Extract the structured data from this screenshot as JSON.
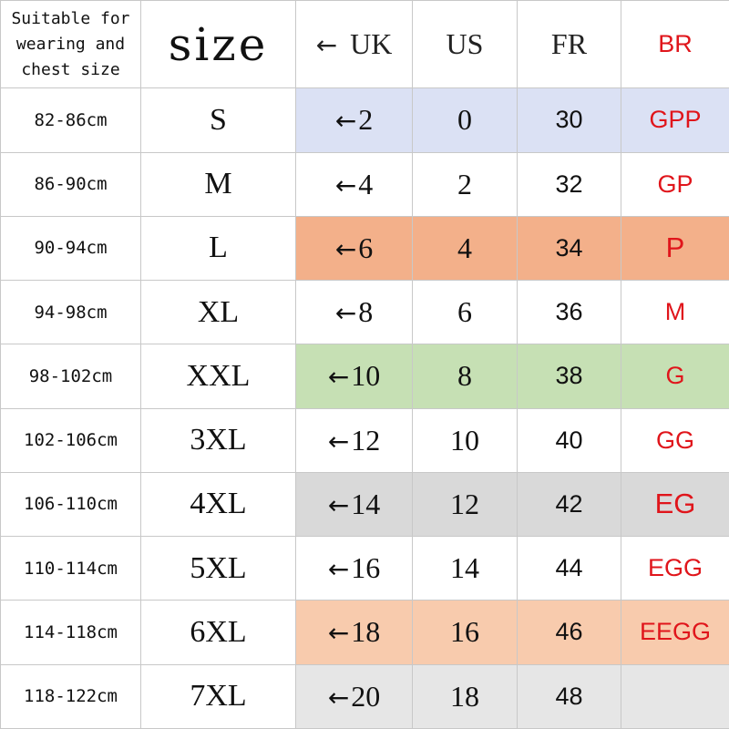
{
  "header": {
    "chest_label": "Suitable for wearing and chest size",
    "size_label": "size",
    "uk_label": "UK",
    "us_label": "US",
    "fr_label": "FR",
    "br_label": "BR",
    "arrow": "←"
  },
  "rows": [
    {
      "chest": "82-86cm",
      "size": "S",
      "uk": "2",
      "us": "0",
      "fr": "30",
      "br": "GPP",
      "highlight": "#dbe1f4"
    },
    {
      "chest": "86-90cm",
      "size": "M",
      "uk": "4",
      "us": "2",
      "fr": "32",
      "br": "GP",
      "highlight": null
    },
    {
      "chest": "90-94cm",
      "size": "L",
      "uk": "6",
      "us": "4",
      "fr": "34",
      "br": "P",
      "highlight": "#f3b08a"
    },
    {
      "chest": "94-98cm",
      "size": "XL",
      "uk": "8",
      "us": "6",
      "fr": "36",
      "br": "M",
      "highlight": null
    },
    {
      "chest": "98-102cm",
      "size": "XXL",
      "uk": "10",
      "us": "8",
      "fr": "38",
      "br": "G",
      "highlight": "#c6e0b4"
    },
    {
      "chest": "102-106cm",
      "size": "3XL",
      "uk": "12",
      "us": "10",
      "fr": "40",
      "br": "GG",
      "highlight": null
    },
    {
      "chest": "106-110cm",
      "size": "4XL",
      "uk": "14",
      "us": "12",
      "fr": "42",
      "br": "EG",
      "highlight": "#d9d9d9"
    },
    {
      "chest": "110-114cm",
      "size": "5XL",
      "uk": "16",
      "us": "14",
      "fr": "44",
      "br": "EGG",
      "highlight": null
    },
    {
      "chest": "114-118cm",
      "size": "6XL",
      "uk": "18",
      "us": "16",
      "fr": "46",
      "br": "EEGG",
      "highlight": "#f8cbad"
    },
    {
      "chest": "118-122cm",
      "size": "7XL",
      "uk": "20",
      "us": "18",
      "fr": "48",
      "br": "",
      "highlight": "#e6e6e6"
    }
  ],
  "colors": {
    "br_text": "#e0151b",
    "grid": "#c8c8c8"
  }
}
